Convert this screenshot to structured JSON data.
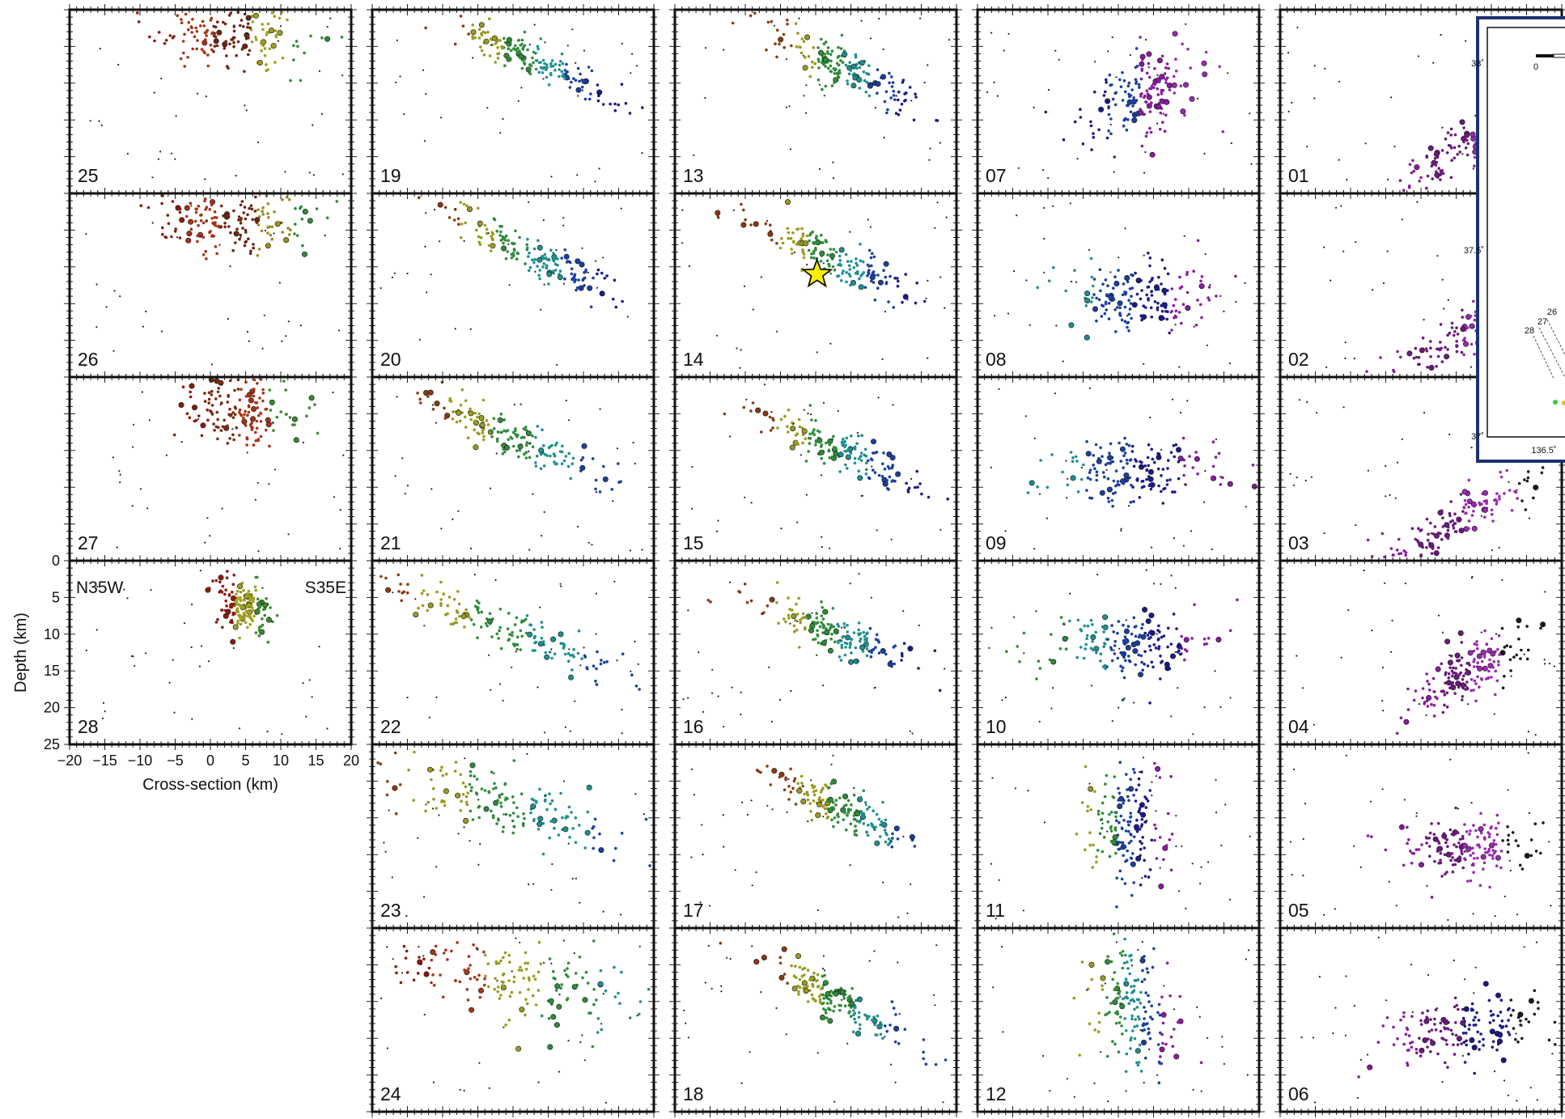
{
  "chart_data": {
    "type": "scatter",
    "panel_grid": {
      "columns": 5
    },
    "xlabel": "Cross-section (km)",
    "ylabel": "Depth (km)",
    "xlim": [
      -20,
      20
    ],
    "ylim": [
      0,
      25
    ],
    "x_ticks": [
      "−20",
      "−15",
      "−10",
      "−5",
      "0",
      "5",
      "10",
      "15",
      "20"
    ],
    "y_ticks": [
      "0",
      "5",
      "10",
      "15",
      "20",
      "25"
    ],
    "direction_labels": {
      "left": "N35W",
      "right": "S35E"
    },
    "color_scheme": "hypocenters colored by position along the fault: red (north-west) → yellow → green → cyan → blue → purple (south-east)",
    "panels": [
      {
        "label": "25",
        "column": 0,
        "row": 0,
        "cluster": {
          "cx": 3,
          "cy": 3.5,
          "sx": 6,
          "sy": 2.2,
          "tilt": 0.05,
          "colors": [
            "#8b1a0e",
            "#a83218",
            "#6e2410",
            "#a0a020",
            "#2e8b3a"
          ]
        }
      },
      {
        "label": "26",
        "column": 0,
        "row": 1,
        "cluster": {
          "cx": 4,
          "cy": 4,
          "sx": 6,
          "sy": 2.2,
          "tilt": 0.05,
          "colors": [
            "#8b1a0e",
            "#a83218",
            "#6e2410",
            "#9a8a20",
            "#2e8b3a"
          ]
        }
      },
      {
        "label": "27",
        "column": 0,
        "row": 2,
        "cluster": {
          "cx": 4,
          "cy": 4,
          "sx": 4,
          "sy": 2.5,
          "tilt": 0.1,
          "colors": [
            "#8b1a0e",
            "#7a2a10",
            "#a83218",
            "#3a8a30"
          ]
        }
      },
      {
        "label": "28",
        "column": 0,
        "row": 3,
        "cluster": {
          "cx": 5,
          "cy": 6.5,
          "sx": 2,
          "sy": 1.6,
          "tilt": 0.3,
          "colors": [
            "#8b1a0e",
            "#a0a020",
            "#3a8a30"
          ]
        }
      },
      {
        "label": "19",
        "column": 1,
        "row": 0,
        "cluster": {
          "cx": 3,
          "cy": 7,
          "sx": 6,
          "sy": 1.3,
          "tilt": 0.45,
          "colors": [
            "#8b3a10",
            "#9a9a20",
            "#2e8b3a",
            "#1f8f8f",
            "#1a3fa0",
            "#1a1a8a"
          ]
        }
      },
      {
        "label": "20",
        "column": 1,
        "row": 1,
        "cluster": {
          "cx": 2,
          "cy": 8,
          "sx": 6.5,
          "sy": 1.3,
          "tilt": 0.45,
          "colors": [
            "#8b3a10",
            "#9a9a20",
            "#2e8b3a",
            "#1f8f8f",
            "#1a3fa0",
            "#1a1a8a"
          ]
        }
      },
      {
        "label": "21",
        "column": 1,
        "row": 2,
        "cluster": {
          "cx": 0,
          "cy": 8,
          "sx": 7,
          "sy": 1.4,
          "tilt": 0.45,
          "colors": [
            "#8b3a10",
            "#9a9a20",
            "#2e8b3a",
            "#1f8f8f",
            "#1a3fa0"
          ]
        }
      },
      {
        "label": "22",
        "column": 1,
        "row": 3,
        "cluster": {
          "cx": -2,
          "cy": 9,
          "sx": 9,
          "sy": 1.5,
          "tilt": 0.4,
          "colors": [
            "#8b3a10",
            "#9a9a20",
            "#2e8b3a",
            "#1f8f8f",
            "#1a3fa0"
          ]
        }
      },
      {
        "label": "23",
        "column": 1,
        "row": 4,
        "cluster": {
          "cx": -2,
          "cy": 8,
          "sx": 10,
          "sy": 2,
          "tilt": 0.25,
          "colors": [
            "#8b3a10",
            "#9a9a20",
            "#2e8b3a",
            "#1f8f8f",
            "#1a3fa0"
          ]
        }
      },
      {
        "label": "24",
        "column": 1,
        "row": 5,
        "cluster": {
          "cx": 0,
          "cy": 7,
          "sx": 9,
          "sy": 2.6,
          "tilt": 0.15,
          "colors": [
            "#8b1a0e",
            "#a83218",
            "#9a9a20",
            "#2e8b3a",
            "#1f8f8f"
          ]
        }
      },
      {
        "label": "13",
        "column": 2,
        "row": 0,
        "cluster": {
          "cx": 4,
          "cy": 8,
          "sx": 5,
          "sy": 1.6,
          "tilt": 0.5,
          "colors": [
            "#8b3a10",
            "#9a9a20",
            "#2e8b3a",
            "#1f8f8f",
            "#1a3fa0",
            "#1a1a8a"
          ]
        }
      },
      {
        "label": "14",
        "column": 2,
        "row": 1,
        "cluster": {
          "cx": 3,
          "cy": 9,
          "sx": 5.5,
          "sy": 1.4,
          "tilt": 0.45,
          "colors": [
            "#8b3a10",
            "#9a9a20",
            "#2e8b3a",
            "#1f8f8f",
            "#1a3fa0",
            "#1a1a8a"
          ]
        },
        "mainshock_star": {
          "x": 0.2,
          "y": 11
        }
      },
      {
        "label": "15",
        "column": 2,
        "row": 2,
        "cluster": {
          "cx": 3,
          "cy": 10,
          "sx": 6,
          "sy": 1.4,
          "tilt": 0.4,
          "colors": [
            "#8b3a10",
            "#9a9a20",
            "#2e8b3a",
            "#1f8f8f",
            "#1a3fa0",
            "#1a1a8a"
          ]
        }
      },
      {
        "label": "16",
        "column": 2,
        "row": 3,
        "cluster": {
          "cx": 3,
          "cy": 10,
          "sx": 6,
          "sy": 1.5,
          "tilt": 0.35,
          "colors": [
            "#8b3a10",
            "#9a9a20",
            "#2e8b3a",
            "#1f8f8f",
            "#1a3fa0",
            "#1a1a8a"
          ]
        }
      },
      {
        "label": "17",
        "column": 2,
        "row": 4,
        "cluster": {
          "cx": 4,
          "cy": 9,
          "sx": 5,
          "sy": 1.4,
          "tilt": 0.45,
          "colors": [
            "#8b3a10",
            "#9a9a20",
            "#2e8b3a",
            "#1f8f8f",
            "#1a3fa0"
          ]
        }
      },
      {
        "label": "18",
        "column": 2,
        "row": 5,
        "cluster": {
          "cx": 3,
          "cy": 10,
          "sx": 5,
          "sy": 1.4,
          "tilt": 0.55,
          "colors": [
            "#8b3a10",
            "#9a9a20",
            "#2e8b3a",
            "#1f8f8f",
            "#1a3fa0"
          ]
        }
      },
      {
        "label": "07",
        "column": 3,
        "row": 0,
        "cluster": {
          "cx": 3,
          "cy": 12,
          "sx": 4,
          "sy": 3,
          "tilt": -0.3,
          "colors": [
            "#1a1a8a",
            "#1a3fa0",
            "#8a1aa0",
            "#9a2ab0"
          ]
        }
      },
      {
        "label": "08",
        "column": 3,
        "row": 1,
        "cluster": {
          "cx": 2,
          "cy": 14,
          "sx": 5,
          "sy": 2.5,
          "tilt": 0,
          "colors": [
            "#1f8f8f",
            "#1a3fa0",
            "#1a1a8a",
            "#8a1aa0"
          ]
        }
      },
      {
        "label": "09",
        "column": 3,
        "row": 2,
        "cluster": {
          "cx": 2,
          "cy": 13,
          "sx": 6,
          "sy": 2.2,
          "tilt": 0,
          "colors": [
            "#1f8f8f",
            "#1a3fa0",
            "#1a1a8a",
            "#8a1aa0"
          ]
        }
      },
      {
        "label": "10",
        "column": 3,
        "row": 3,
        "cluster": {
          "cx": 1,
          "cy": 12,
          "sx": 6,
          "sy": 2.5,
          "tilt": 0,
          "colors": [
            "#2e8b3a",
            "#1f8f8f",
            "#1a3fa0",
            "#1a1a8a",
            "#8a1aa0"
          ]
        }
      },
      {
        "label": "11",
        "column": 3,
        "row": 4,
        "cluster": {
          "cx": 1,
          "cy": 11,
          "sx": 3,
          "sy": 4,
          "tilt": 0.2,
          "colors": [
            "#9a9a20",
            "#2e8b3a",
            "#1a3fa0",
            "#1a1a8a",
            "#8a1aa0"
          ]
        }
      },
      {
        "label": "12",
        "column": 3,
        "row": 5,
        "cluster": {
          "cx": 2,
          "cy": 11,
          "sx": 3,
          "sy": 4,
          "tilt": 0.4,
          "colors": [
            "#9a9a20",
            "#2e8b3a",
            "#1f8f8f",
            "#1a3fa0",
            "#8a1aa0"
          ]
        }
      },
      {
        "label": "01",
        "column": 4,
        "row": 0,
        "cluster": {
          "cx": 7,
          "cy": 18,
          "sx": 6,
          "sy": 1.5,
          "tilt": -0.6,
          "colors": [
            "#8a1aa0",
            "#6a1a7a",
            "#9a2ab0",
            "#1a1a1a"
          ]
        }
      },
      {
        "label": "02",
        "column": 4,
        "row": 1,
        "cluster": {
          "cx": 6,
          "cy": 19,
          "sx": 7,
          "sy": 1.6,
          "tilt": -0.55,
          "colors": [
            "#8a1aa0",
            "#6a1a7a",
            "#9a2ab0",
            "#1a1a1a"
          ]
        }
      },
      {
        "label": "03",
        "column": 4,
        "row": 2,
        "cluster": {
          "cx": 6,
          "cy": 19,
          "sx": 7,
          "sy": 1.6,
          "tilt": -0.55,
          "colors": [
            "#8a1aa0",
            "#6a1a7a",
            "#9a2ab0",
            "#1a1a1a"
          ]
        }
      },
      {
        "label": "04",
        "column": 4,
        "row": 3,
        "cluster": {
          "cx": 7,
          "cy": 15,
          "sx": 4,
          "sy": 2,
          "tilt": -0.5,
          "colors": [
            "#8a1aa0",
            "#6a1a7a",
            "#9a2ab0",
            "#1a1a1a"
          ]
        }
      },
      {
        "label": "05",
        "column": 4,
        "row": 4,
        "cluster": {
          "cx": 6,
          "cy": 14,
          "sx": 5,
          "sy": 2,
          "tilt": 0,
          "colors": [
            "#8a1aa0",
            "#6a1a7a",
            "#9a2ab0",
            "#1a1a1a"
          ]
        }
      },
      {
        "label": "06",
        "column": 4,
        "row": 5,
        "cluster": {
          "cx": 6,
          "cy": 14,
          "sx": 6,
          "sy": 2.2,
          "tilt": -0.1,
          "colors": [
            "#8a1aa0",
            "#6a1a7a",
            "#1a1a8a",
            "#1a1a1a"
          ]
        }
      }
    ]
  },
  "inset_map": {
    "lat_labels": [
      "38˚",
      "37.5˚",
      "37˚"
    ],
    "lon_labels": [
      "136.5˚"
    ],
    "scale_label": "0",
    "section_labels": [
      "28",
      "27",
      "26"
    ]
  }
}
